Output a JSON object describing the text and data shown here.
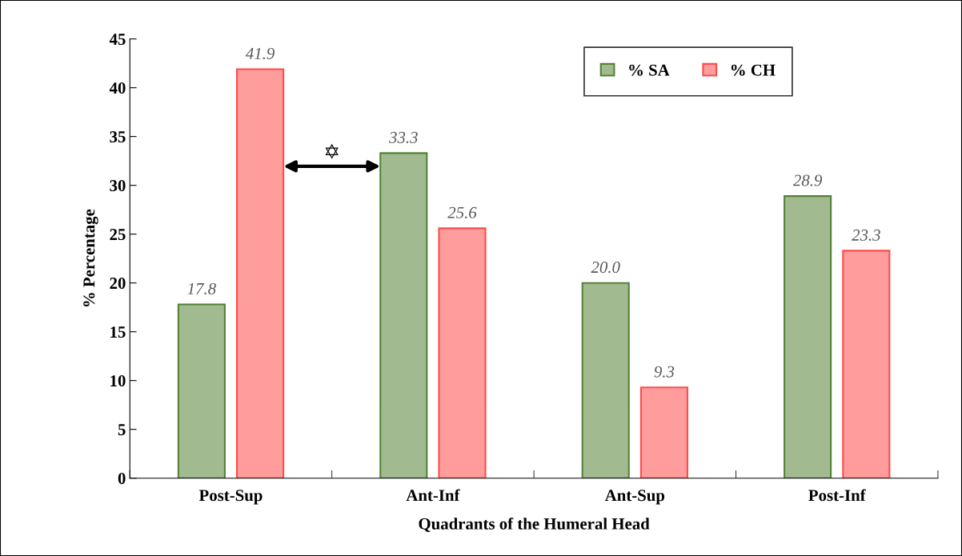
{
  "chart_data": {
    "type": "bar",
    "xlabel": "Quadrants of the Humeral Head",
    "ylabel": "% Percentage",
    "categories": [
      "Post-Sup",
      "Ant-Inf",
      "Ant-Sup",
      "Post-Inf"
    ],
    "series": [
      {
        "name": "% SA",
        "color": "#548235",
        "values": [
          17.8,
          33.3,
          20.0,
          28.9
        ],
        "value_labels": [
          "17.8",
          "33.3",
          "20.0",
          "28.9"
        ]
      },
      {
        "name": "% CH",
        "color": "#ff4b4b",
        "values": [
          41.9,
          25.6,
          9.3,
          23.3
        ],
        "value_labels": [
          "41.9",
          "25.6",
          "9.3",
          "23.3"
        ]
      }
    ],
    "ylim": [
      0,
      45
    ],
    "yticks": [
      0,
      5,
      10,
      15,
      20,
      25,
      30,
      35,
      40,
      45
    ],
    "annotations": [
      "✡"
    ],
    "legend": "top right",
    "grid": false
  }
}
